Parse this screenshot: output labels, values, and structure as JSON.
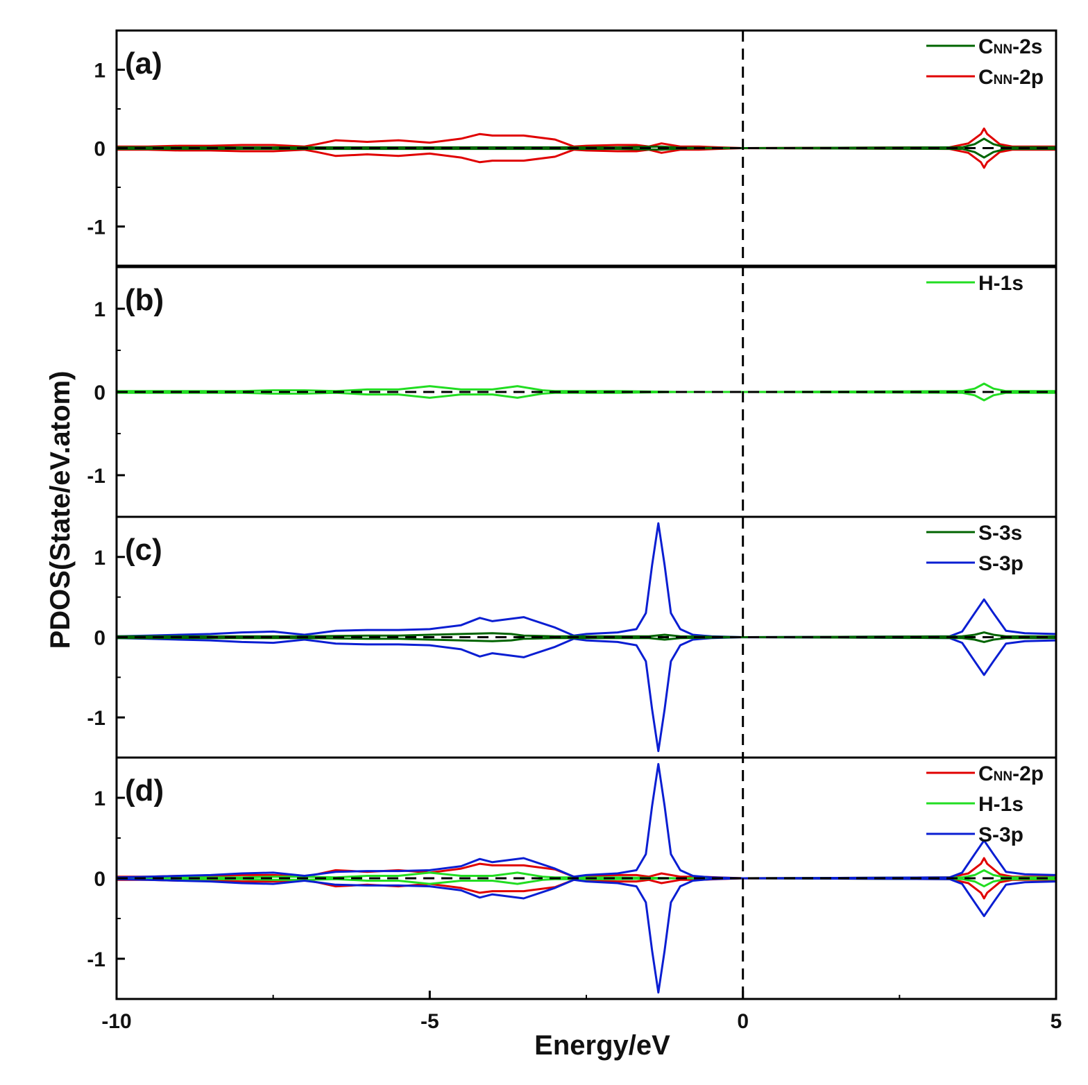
{
  "colors": {
    "dark_green": "#006400",
    "red": "#e00000",
    "light_green": "#22dd22",
    "blue": "#0a1ed2",
    "zero_line": "#000000"
  },
  "chart_data": {
    "type": "line",
    "title": "",
    "xlabel": "Energy/eV",
    "ylabel": "PDOS(State/eV.atom)",
    "xlim": [
      -10,
      5
    ],
    "x_ticks": [
      "-10",
      "-5",
      "0",
      "5"
    ],
    "fermi_level_x": 0,
    "panels": [
      {
        "tag": "(a)",
        "ylim": [
          -1.5,
          1.5
        ],
        "y_ticks": [
          "1",
          "0",
          "-1"
        ],
        "legend": [
          {
            "main": "C",
            "sub": "NN",
            "suffix": "-2s",
            "color": "#006400"
          },
          {
            "main": "C",
            "sub": "NN",
            "suffix": "-2p",
            "color": "#e00000"
          }
        ],
        "series": [
          {
            "name": "CNN-2p",
            "color": "#e00000",
            "mirrored": true,
            "x": [
              -10,
              -9.5,
              -9,
              -8.5,
              -8,
              -7.5,
              -7,
              -6.8,
              -6.5,
              -6,
              -5.5,
              -5,
              -4.5,
              -4.2,
              -4,
              -3.5,
              -3,
              -2.7,
              -2.5,
              -2,
              -1.7,
              -1.5,
              -1.3,
              -1,
              -0.7,
              -0.4,
              0,
              3.3,
              3.6,
              3.8,
              3.85,
              3.9,
              4.1,
              4.3,
              4.5,
              5
            ],
            "y": [
              0.02,
              0.02,
              0.03,
              0.03,
              0.04,
              0.04,
              0.02,
              0.05,
              0.1,
              0.08,
              0.1,
              0.07,
              0.12,
              0.18,
              0.16,
              0.16,
              0.11,
              0.02,
              0.03,
              0.04,
              0.04,
              0.02,
              0.06,
              0.02,
              0.02,
              0.01,
              0,
              0.01,
              0.06,
              0.18,
              0.25,
              0.18,
              0.05,
              0.02,
              0.02,
              0.02
            ]
          },
          {
            "name": "CNN-2s",
            "color": "#006400",
            "mirrored": true,
            "x": [
              -10,
              -9,
              -8,
              -7,
              -6,
              -5,
              -4,
              -3,
              -2,
              -1.3,
              -1,
              0,
              3.5,
              3.7,
              3.85,
              4.0,
              4.2,
              5
            ],
            "y": [
              0.01,
              0.01,
              0.01,
              0.01,
              0.01,
              0.01,
              0.01,
              0.01,
              0.01,
              0.02,
              0.005,
              0,
              0.01,
              0.05,
              0.12,
              0.05,
              0.01,
              0.01
            ]
          }
        ]
      },
      {
        "tag": "(b)",
        "ylim": [
          -1.5,
          1.5
        ],
        "y_ticks": [
          "1",
          "0",
          "-1"
        ],
        "legend": [
          {
            "main": "H-1s",
            "sub": "",
            "suffix": "",
            "color": "#22dd22"
          }
        ],
        "series": [
          {
            "name": "H-1s",
            "color": "#22dd22",
            "mirrored": true,
            "x": [
              -10,
              -9,
              -8.5,
              -8,
              -7.5,
              -7,
              -6.5,
              -6,
              -5.5,
              -5,
              -4.5,
              -4,
              -3.6,
              -3.2,
              -3,
              -2.5,
              -2,
              -1,
              0,
              3.5,
              3.7,
              3.85,
              4.0,
              4.2,
              5
            ],
            "y": [
              0.01,
              0.01,
              0.01,
              0.01,
              0.02,
              0.02,
              0.01,
              0.03,
              0.03,
              0.07,
              0.03,
              0.03,
              0.07,
              0.02,
              0.01,
              0.01,
              0.01,
              0,
              0,
              0.01,
              0.04,
              0.1,
              0.04,
              0.01,
              0.01
            ]
          }
        ]
      },
      {
        "tag": "(c)",
        "ylim": [
          -1.5,
          1.5
        ],
        "y_ticks": [
          "1",
          "0",
          "-1"
        ],
        "legend": [
          {
            "main": "S-3s",
            "sub": "",
            "suffix": "",
            "color": "#006400"
          },
          {
            "main": "S-3p",
            "sub": "",
            "suffix": "",
            "color": "#0a1ed2"
          }
        ],
        "series": [
          {
            "name": "S-3p",
            "color": "#0a1ed2",
            "mirrored": true,
            "x": [
              -10,
              -9.5,
              -9,
              -8.5,
              -8,
              -7.5,
              -7,
              -6.8,
              -6.5,
              -6,
              -5.5,
              -5,
              -4.5,
              -4.2,
              -4,
              -3.5,
              -3,
              -2.7,
              -2.5,
              -2,
              -1.7,
              -1.55,
              -1.45,
              -1.35,
              -1.25,
              -1.15,
              -1.0,
              -0.8,
              -0.5,
              0,
              3.3,
              3.5,
              3.7,
              3.85,
              4.0,
              4.2,
              4.5,
              5
            ],
            "y": [
              0.01,
              0.02,
              0.03,
              0.04,
              0.06,
              0.07,
              0.03,
              0.05,
              0.08,
              0.09,
              0.09,
              0.1,
              0.15,
              0.24,
              0.2,
              0.25,
              0.12,
              0.02,
              0.04,
              0.06,
              0.1,
              0.3,
              0.9,
              1.42,
              0.9,
              0.3,
              0.1,
              0.03,
              0.01,
              0,
              0.01,
              0.07,
              0.3,
              0.47,
              0.3,
              0.08,
              0.05,
              0.04
            ]
          },
          {
            "name": "S-3s",
            "color": "#006400",
            "mirrored": true,
            "x": [
              -10,
              -9,
              -8,
              -7,
              -6,
              -5.5,
              -5,
              -4.5,
              -4,
              -3.7,
              -3.5,
              -3,
              -2,
              -1.5,
              -1.25,
              -1,
              0,
              3.5,
              3.7,
              3.85,
              4.0,
              4.2,
              5
            ],
            "y": [
              0.01,
              0.01,
              0.01,
              0.01,
              0.02,
              0.02,
              0.03,
              0.04,
              0.05,
              0.04,
              0.02,
              0.01,
              0.01,
              0.01,
              0.03,
              0.01,
              0,
              0.01,
              0.03,
              0.06,
              0.03,
              0.01,
              0.01
            ]
          }
        ]
      },
      {
        "tag": "(d)",
        "ylim": [
          -1.5,
          1.5
        ],
        "y_ticks": [
          "1",
          "0",
          "-1"
        ],
        "legend": [
          {
            "main": "C",
            "sub": "NN",
            "suffix": "-2p",
            "color": "#e00000"
          },
          {
            "main": "H-1s",
            "sub": "",
            "suffix": "",
            "color": "#22dd22"
          },
          {
            "main": "S-3p",
            "sub": "",
            "suffix": "",
            "color": "#0a1ed2"
          }
        ],
        "series": [
          {
            "name": "CNN-2p",
            "color": "#e00000",
            "mirrored": true,
            "x": [
              -10,
              -9.5,
              -9,
              -8.5,
              -8,
              -7.5,
              -7,
              -6.8,
              -6.5,
              -6,
              -5.5,
              -5,
              -4.5,
              -4.2,
              -4,
              -3.5,
              -3,
              -2.7,
              -2.5,
              -2,
              -1.7,
              -1.5,
              -1.3,
              -1,
              -0.7,
              -0.4,
              0,
              3.3,
              3.6,
              3.8,
              3.85,
              3.9,
              4.1,
              4.3,
              4.5,
              5
            ],
            "y": [
              0.02,
              0.02,
              0.03,
              0.03,
              0.04,
              0.04,
              0.02,
              0.05,
              0.1,
              0.08,
              0.1,
              0.07,
              0.12,
              0.18,
              0.16,
              0.16,
              0.11,
              0.02,
              0.03,
              0.04,
              0.04,
              0.02,
              0.06,
              0.02,
              0.02,
              0.01,
              0,
              0.01,
              0.06,
              0.18,
              0.25,
              0.18,
              0.05,
              0.02,
              0.02,
              0.02
            ]
          },
          {
            "name": "H-1s",
            "color": "#22dd22",
            "mirrored": true,
            "x": [
              -10,
              -9,
              -8.5,
              -8,
              -7.5,
              -7,
              -6.5,
              -6,
              -5.5,
              -5,
              -4.5,
              -4,
              -3.6,
              -3.2,
              -3,
              -2.5,
              -2,
              -1,
              0,
              3.5,
              3.7,
              3.85,
              4.0,
              4.2,
              5
            ],
            "y": [
              0.01,
              0.01,
              0.01,
              0.01,
              0.02,
              0.02,
              0.01,
              0.03,
              0.03,
              0.07,
              0.03,
              0.03,
              0.07,
              0.02,
              0.01,
              0.01,
              0.01,
              0,
              0,
              0.01,
              0.04,
              0.1,
              0.04,
              0.01,
              0.01
            ]
          },
          {
            "name": "S-3p",
            "color": "#0a1ed2",
            "mirrored": true,
            "x": [
              -10,
              -9.5,
              -9,
              -8.5,
              -8,
              -7.5,
              -7,
              -6.8,
              -6.5,
              -6,
              -5.5,
              -5,
              -4.5,
              -4.2,
              -4,
              -3.5,
              -3,
              -2.7,
              -2.5,
              -2,
              -1.7,
              -1.55,
              -1.45,
              -1.35,
              -1.25,
              -1.15,
              -1.0,
              -0.8,
              -0.5,
              0,
              3.3,
              3.5,
              3.7,
              3.85,
              4.0,
              4.2,
              4.5,
              5
            ],
            "y": [
              0.01,
              0.02,
              0.03,
              0.04,
              0.06,
              0.07,
              0.03,
              0.05,
              0.08,
              0.09,
              0.09,
              0.1,
              0.15,
              0.24,
              0.2,
              0.25,
              0.12,
              0.02,
              0.04,
              0.06,
              0.1,
              0.3,
              0.9,
              1.42,
              0.9,
              0.3,
              0.1,
              0.03,
              0.01,
              0,
              0.01,
              0.07,
              0.3,
              0.47,
              0.3,
              0.08,
              0.05,
              0.04
            ]
          }
        ]
      }
    ]
  }
}
